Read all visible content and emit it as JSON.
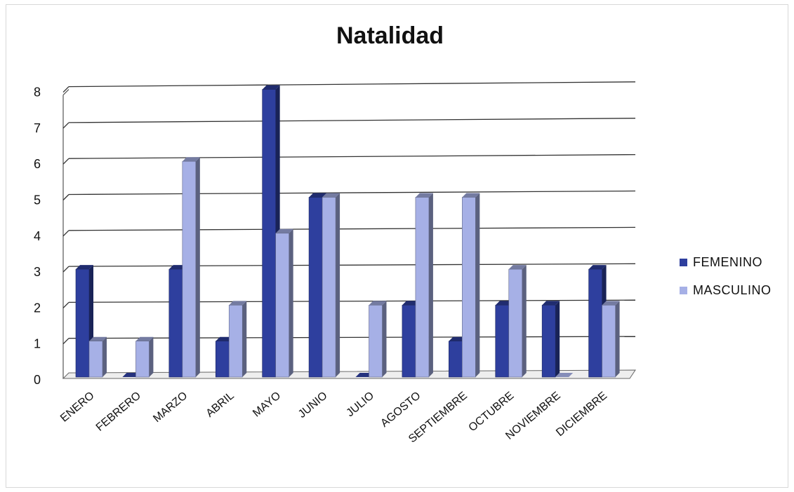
{
  "chart_data": {
    "type": "bar",
    "title": "Natalidad",
    "categories": [
      "ENERO",
      "FEBRERO",
      "MARZO",
      "ABRIL",
      "MAYO",
      "JUNIO",
      "JULIO",
      "AGOSTO",
      "SEPTIEMBRE",
      "OCTUBRE",
      "NOVIEMBRE",
      "DICIEMBRE"
    ],
    "series": [
      {
        "name": "FEMENINO",
        "color": "#2e3f9e",
        "values": [
          3,
          0,
          3,
          1,
          8,
          5,
          0,
          2,
          1,
          2,
          2,
          3
        ]
      },
      {
        "name": "MASCULINO",
        "color": "#a6b0e6",
        "values": [
          1,
          1,
          6,
          2,
          4,
          5,
          2,
          5,
          5,
          3,
          0,
          2
        ]
      }
    ],
    "ylim": [
      0,
      8
    ],
    "yticks": [
      "0",
      "1",
      "2",
      "3",
      "4",
      "5",
      "6",
      "7",
      "8"
    ],
    "grid": true,
    "legend_position": "right",
    "style": "3d-clustered-columns"
  }
}
